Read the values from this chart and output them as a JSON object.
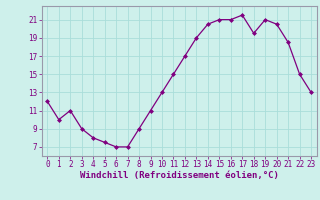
{
  "hours": [
    0,
    1,
    2,
    3,
    4,
    5,
    6,
    7,
    8,
    9,
    10,
    11,
    12,
    13,
    14,
    15,
    16,
    17,
    18,
    19,
    20,
    21,
    22,
    23
  ],
  "values": [
    12,
    10,
    11,
    9,
    8,
    7.5,
    7,
    7,
    9,
    11,
    13,
    15,
    17,
    19,
    20.5,
    21,
    21,
    21.5,
    19.5,
    21,
    20.5,
    18.5,
    15,
    13
  ],
  "line_color": "#800080",
  "marker": "D",
  "marker_size": 2.0,
  "bg_color": "#cef0eb",
  "grid_color": "#aaddda",
  "border_color": "#9999aa",
  "ylabel_ticks": [
    7,
    9,
    11,
    13,
    15,
    17,
    19,
    21
  ],
  "xlabel": "Windchill (Refroidissement éolien,°C)",
  "ylim": [
    6.0,
    22.5
  ],
  "xlim": [
    -0.5,
    23.5
  ],
  "tick_fontsize": 5.5,
  "xlabel_fontsize": 6.5,
  "linewidth": 0.9
}
